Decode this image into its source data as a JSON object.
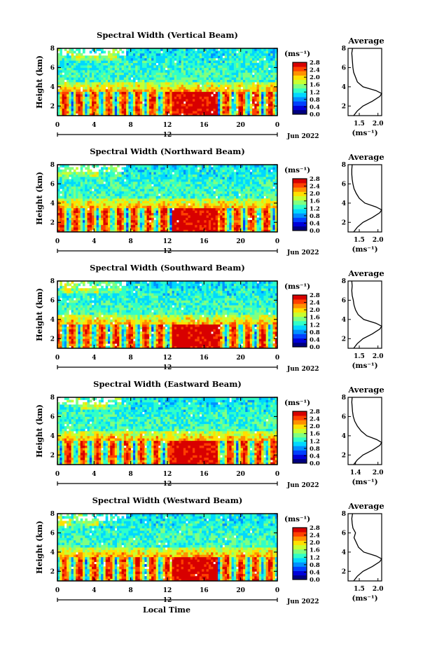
{
  "colormap": [
    "#00007f",
    "#0000d8",
    "#0040ff",
    "#0090ff",
    "#00d8ff",
    "#30ffc8",
    "#80ff80",
    "#c8ff30",
    "#ffe000",
    "#ff9000",
    "#ff4000",
    "#d80000"
  ],
  "shared": {
    "time_unit_label": "Local Time",
    "time_ticks": [
      "0",
      "4",
      "8",
      "12",
      "16",
      "20",
      "0"
    ],
    "day_marker": "12",
    "month_label": "Jun 2022",
    "height_ticks": [
      "2",
      "4",
      "6",
      "8"
    ],
    "ylabel": "Height (km)",
    "colorbar_unit": "(ms⁻¹)",
    "colorbar_ticks": [
      "0.0",
      "0.4",
      "0.8",
      "1.2",
      "1.6",
      "2.0",
      "2.4",
      "2.8"
    ],
    "avg_title": "Average",
    "avg_xlabel": "(ms⁻¹)"
  },
  "chart_data": [
    {
      "type": "heatmap",
      "title": "Spectral Width (Vertical Beam)",
      "xlabel": "",
      "ylabel": "Height (km)",
      "xlim": [
        0,
        24
      ],
      "ylim": [
        1,
        8
      ],
      "clim": [
        0.0,
        2.8
      ],
      "avg_profile": {
        "title": "Average",
        "xlim": [
          1.2,
          2.1
        ],
        "xticks": [
          "1.5",
          "2.0"
        ],
        "heights": [
          1.0,
          1.5,
          2.0,
          2.5,
          3.0,
          3.3,
          3.6,
          4.0,
          4.5,
          5.0,
          5.5,
          6.0,
          6.5,
          7.0,
          7.5,
          8.0
        ],
        "values": [
          1.35,
          1.45,
          1.6,
          1.85,
          2.05,
          2.1,
          1.95,
          1.6,
          1.45,
          1.4,
          1.35,
          1.33,
          1.32,
          1.31,
          1.3,
          1.32
        ]
      }
    },
    {
      "type": "heatmap",
      "title": "Spectral Width (Northward Beam)",
      "xlabel": "",
      "ylabel": "Height (km)",
      "xlim": [
        0,
        24
      ],
      "ylim": [
        1,
        8
      ],
      "clim": [
        0.0,
        2.8
      ],
      "avg_profile": {
        "title": "Average",
        "xlim": [
          1.2,
          2.1
        ],
        "xticks": [
          "1.5",
          "2.0"
        ],
        "heights": [
          1.0,
          1.5,
          2.0,
          2.5,
          3.0,
          3.3,
          3.6,
          4.0,
          4.5,
          5.0,
          5.5,
          6.0,
          6.5,
          7.0,
          7.5,
          8.0
        ],
        "values": [
          1.35,
          1.45,
          1.6,
          1.85,
          2.05,
          2.1,
          1.95,
          1.65,
          1.5,
          1.42,
          1.36,
          1.33,
          1.31,
          1.3,
          1.3,
          1.31
        ]
      }
    },
    {
      "type": "heatmap",
      "title": "Spectral Width (Southward Beam)",
      "xlabel": "",
      "ylabel": "Height (km)",
      "xlim": [
        0,
        24
      ],
      "ylim": [
        1,
        8
      ],
      "clim": [
        0.0,
        2.8
      ],
      "avg_profile": {
        "title": "Average",
        "xlim": [
          1.2,
          2.1
        ],
        "xticks": [
          "1.5",
          "2.0"
        ],
        "heights": [
          1.0,
          1.5,
          2.0,
          2.5,
          3.0,
          3.3,
          3.6,
          4.0,
          4.5,
          5.0,
          5.5,
          6.0,
          6.5,
          7.0,
          7.5,
          8.0
        ],
        "values": [
          1.35,
          1.45,
          1.6,
          1.85,
          2.05,
          2.1,
          1.95,
          1.62,
          1.47,
          1.4,
          1.36,
          1.34,
          1.31,
          1.3,
          1.31,
          1.3
        ]
      }
    },
    {
      "type": "heatmap",
      "title": "Spectral Width (Eastward Beam)",
      "xlabel": "",
      "ylabel": "Height (km)",
      "xlim": [
        0,
        24
      ],
      "ylim": [
        1,
        8
      ],
      "clim": [
        0.0,
        2.8
      ],
      "avg_profile": {
        "title": "Average",
        "xlim": [
          1.2,
          2.1
        ],
        "xticks": [
          "1.4",
          "2.0"
        ],
        "heights": [
          1.0,
          1.5,
          2.0,
          2.5,
          3.0,
          3.3,
          3.6,
          4.0,
          4.5,
          5.0,
          5.5,
          6.0,
          6.5,
          7.0,
          7.5,
          8.0
        ],
        "values": [
          1.35,
          1.45,
          1.6,
          1.85,
          2.05,
          2.1,
          1.97,
          1.7,
          1.55,
          1.45,
          1.38,
          1.34,
          1.32,
          1.31,
          1.3,
          1.31
        ]
      }
    },
    {
      "type": "heatmap",
      "title": "Spectral Width (Westward Beam)",
      "xlabel": "Local Time",
      "ylabel": "Height (km)",
      "xlim": [
        0,
        24
      ],
      "ylim": [
        1,
        8
      ],
      "clim": [
        0.0,
        2.8
      ],
      "avg_profile": {
        "title": "Average",
        "xlim": [
          1.2,
          2.1
        ],
        "xticks": [
          "1.5",
          "2.0"
        ],
        "heights": [
          1.0,
          1.5,
          2.0,
          2.5,
          3.0,
          3.3,
          3.6,
          4.0,
          4.5,
          5.0,
          5.5,
          6.0,
          6.5,
          7.0,
          7.5,
          8.0
        ],
        "values": [
          1.35,
          1.45,
          1.6,
          1.85,
          2.05,
          2.1,
          1.95,
          1.62,
          1.48,
          1.42,
          1.36,
          1.4,
          1.33,
          1.31,
          1.3,
          1.32
        ]
      }
    }
  ]
}
